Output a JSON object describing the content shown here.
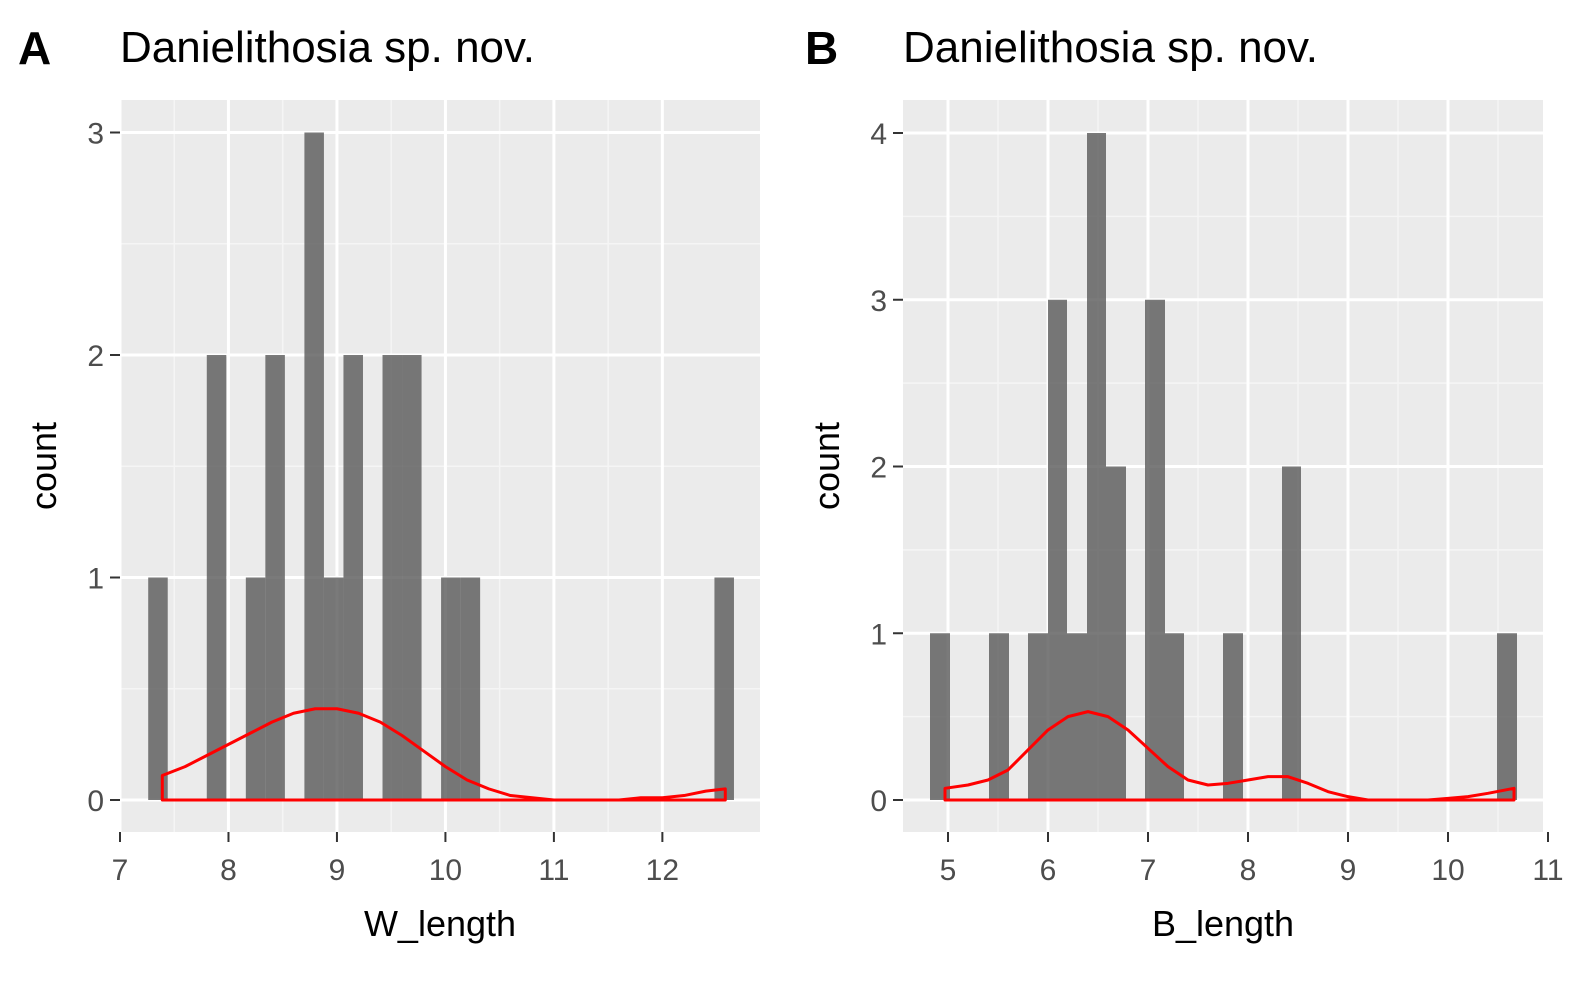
{
  "chart_data": [
    {
      "type": "bar",
      "tag": "A",
      "title": "Danielithosia sp. nov.",
      "xlabel": "W_length",
      "ylabel": "count",
      "xlim": [
        7,
        12.9
      ],
      "ylim": [
        0,
        3.15
      ],
      "xticks": [
        "7",
        "8",
        "9",
        "10",
        "11",
        "12"
      ],
      "yticks": [
        "0",
        "1",
        "2",
        "3"
      ],
      "grid": true,
      "bar_color": "#595959",
      "density_color": "#ff0000",
      "bars": [
        {
          "x0": 7.26,
          "x1": 7.44,
          "count": 1
        },
        {
          "x0": 7.8,
          "x1": 7.98,
          "count": 2
        },
        {
          "x0": 8.16,
          "x1": 8.34,
          "count": 1
        },
        {
          "x0": 8.34,
          "x1": 8.52,
          "count": 2
        },
        {
          "x0": 8.7,
          "x1": 8.88,
          "count": 3
        },
        {
          "x0": 8.88,
          "x1": 9.06,
          "count": 1
        },
        {
          "x0": 9.06,
          "x1": 9.24,
          "count": 2
        },
        {
          "x0": 9.42,
          "x1": 9.6,
          "count": 2
        },
        {
          "x0": 9.6,
          "x1": 9.78,
          "count": 2
        },
        {
          "x0": 9.96,
          "x1": 10.14,
          "count": 1
        },
        {
          "x0": 10.14,
          "x1": 10.32,
          "count": 1
        },
        {
          "x0": 12.48,
          "x1": 12.66,
          "count": 1
        }
      ],
      "density": {
        "x": [
          7.39,
          7.6,
          7.8,
          8.0,
          8.2,
          8.4,
          8.6,
          8.8,
          9.0,
          9.2,
          9.4,
          9.6,
          9.8,
          10.0,
          10.2,
          10.4,
          10.6,
          10.8,
          11.0,
          11.2,
          11.4,
          11.6,
          11.8,
          12.0,
          12.2,
          12.4,
          12.58
        ],
        "y": [
          0.11,
          0.15,
          0.2,
          0.25,
          0.3,
          0.35,
          0.39,
          0.41,
          0.41,
          0.39,
          0.35,
          0.29,
          0.22,
          0.15,
          0.09,
          0.05,
          0.02,
          0.01,
          0.0,
          0.0,
          0.0,
          0.0,
          0.01,
          0.01,
          0.02,
          0.04,
          0.05
        ]
      }
    },
    {
      "type": "bar",
      "tag": "B",
      "title": "Danielithosia sp. nov.",
      "xlabel": "B_length",
      "ylabel": "count",
      "xlim": [
        4.55,
        10.95
      ],
      "ylim": [
        0,
        4.2
      ],
      "xticks": [
        "5",
        "6",
        "7",
        "8",
        "9",
        "10",
        "11"
      ],
      "yticks": [
        "0",
        "1",
        "2",
        "3",
        "4"
      ],
      "grid": true,
      "bar_color": "#595959",
      "density_color": "#ff0000",
      "bars": [
        {
          "x0": 4.82,
          "x1": 5.02,
          "count": 1
        },
        {
          "x0": 5.41,
          "x1": 5.61,
          "count": 1
        },
        {
          "x0": 5.8,
          "x1": 6.0,
          "count": 1
        },
        {
          "x0": 6.0,
          "x1": 6.19,
          "count": 3
        },
        {
          "x0": 6.19,
          "x1": 6.39,
          "count": 1
        },
        {
          "x0": 6.39,
          "x1": 6.58,
          "count": 4
        },
        {
          "x0": 6.58,
          "x1": 6.78,
          "count": 2
        },
        {
          "x0": 6.97,
          "x1": 7.17,
          "count": 3
        },
        {
          "x0": 7.17,
          "x1": 7.36,
          "count": 1
        },
        {
          "x0": 7.75,
          "x1": 7.95,
          "count": 1
        },
        {
          "x0": 8.34,
          "x1": 8.53,
          "count": 2
        },
        {
          "x0": 10.49,
          "x1": 10.69,
          "count": 1
        }
      ],
      "density": {
        "x": [
          4.97,
          5.2,
          5.4,
          5.6,
          5.8,
          6.0,
          6.2,
          6.4,
          6.6,
          6.8,
          7.0,
          7.2,
          7.4,
          7.6,
          7.8,
          8.0,
          8.2,
          8.4,
          8.6,
          8.8,
          9.0,
          9.2,
          9.4,
          9.6,
          9.8,
          10.0,
          10.2,
          10.4,
          10.66
        ],
        "y": [
          0.07,
          0.09,
          0.12,
          0.18,
          0.3,
          0.42,
          0.5,
          0.53,
          0.5,
          0.42,
          0.31,
          0.2,
          0.12,
          0.09,
          0.1,
          0.12,
          0.14,
          0.14,
          0.1,
          0.05,
          0.02,
          0.0,
          0.0,
          0.0,
          0.0,
          0.01,
          0.02,
          0.04,
          0.07
        ]
      }
    }
  ]
}
